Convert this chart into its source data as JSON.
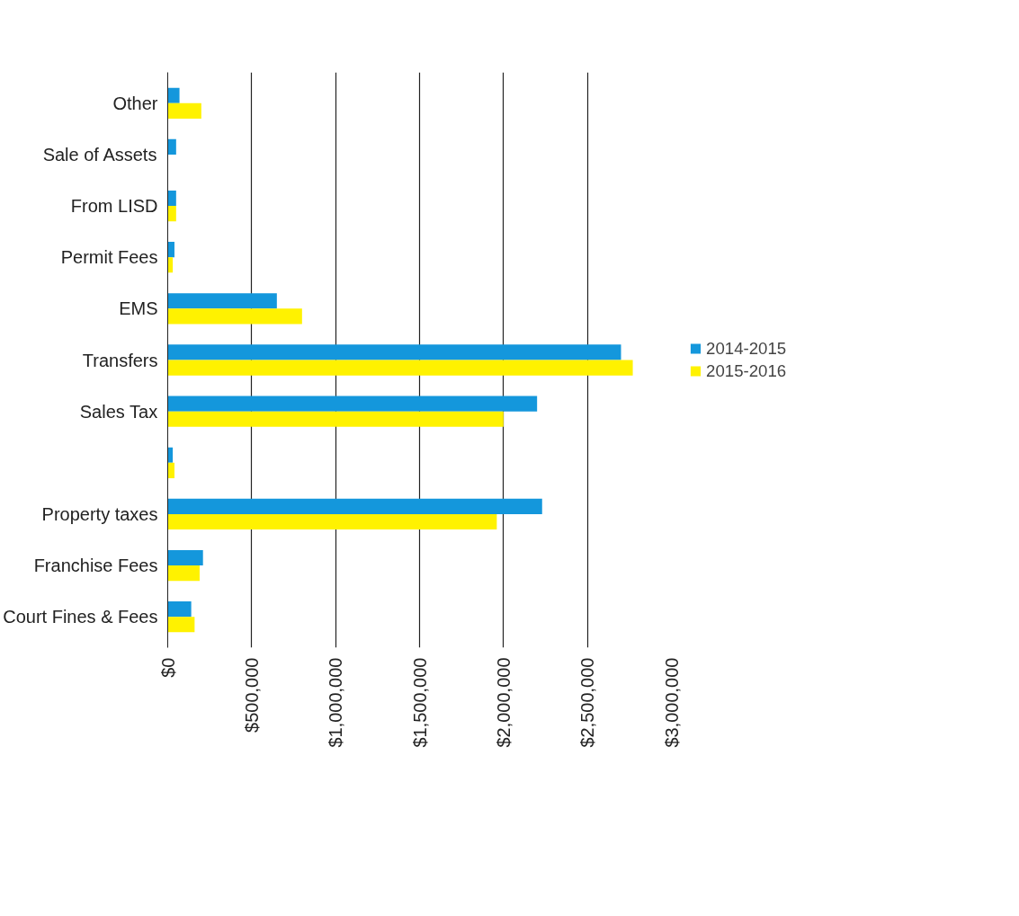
{
  "chart_data": {
    "type": "bar",
    "orientation": "horizontal",
    "categories": [
      "Other",
      "Sale of Assets",
      "From LISD",
      "Permit Fees",
      "EMS",
      "Transfers",
      "Sales Tax",
      null,
      "Property taxes",
      "Franchise Fees",
      "Court Fines & Fees"
    ],
    "series": [
      {
        "name": "2014-2015",
        "color": "#1497dc",
        "values": [
          70000,
          50000,
          50000,
          40000,
          650000,
          2700000,
          2200000,
          30000,
          2230000,
          210000,
          140000
        ]
      },
      {
        "name": "2015-2016",
        "color": "#fff200",
        "values": [
          200000,
          null,
          50000,
          30000,
          800000,
          2770000,
          2000000,
          40000,
          1960000,
          190000,
          160000
        ]
      }
    ],
    "xlim": [
      0,
      3000000
    ],
    "xticks": [
      {
        "value": 0,
        "label": "$0"
      },
      {
        "value": 500000,
        "label": "$500,000"
      },
      {
        "value": 1000000,
        "label": "$1,000,000"
      },
      {
        "value": 1500000,
        "label": "$1,500,000"
      },
      {
        "value": 2000000,
        "label": "$2,000,000"
      },
      {
        "value": 2500000,
        "label": "$2,500,000"
      },
      {
        "value": 3000000,
        "label": "$3,000,000"
      }
    ],
    "grid": "x",
    "legend": "right"
  }
}
